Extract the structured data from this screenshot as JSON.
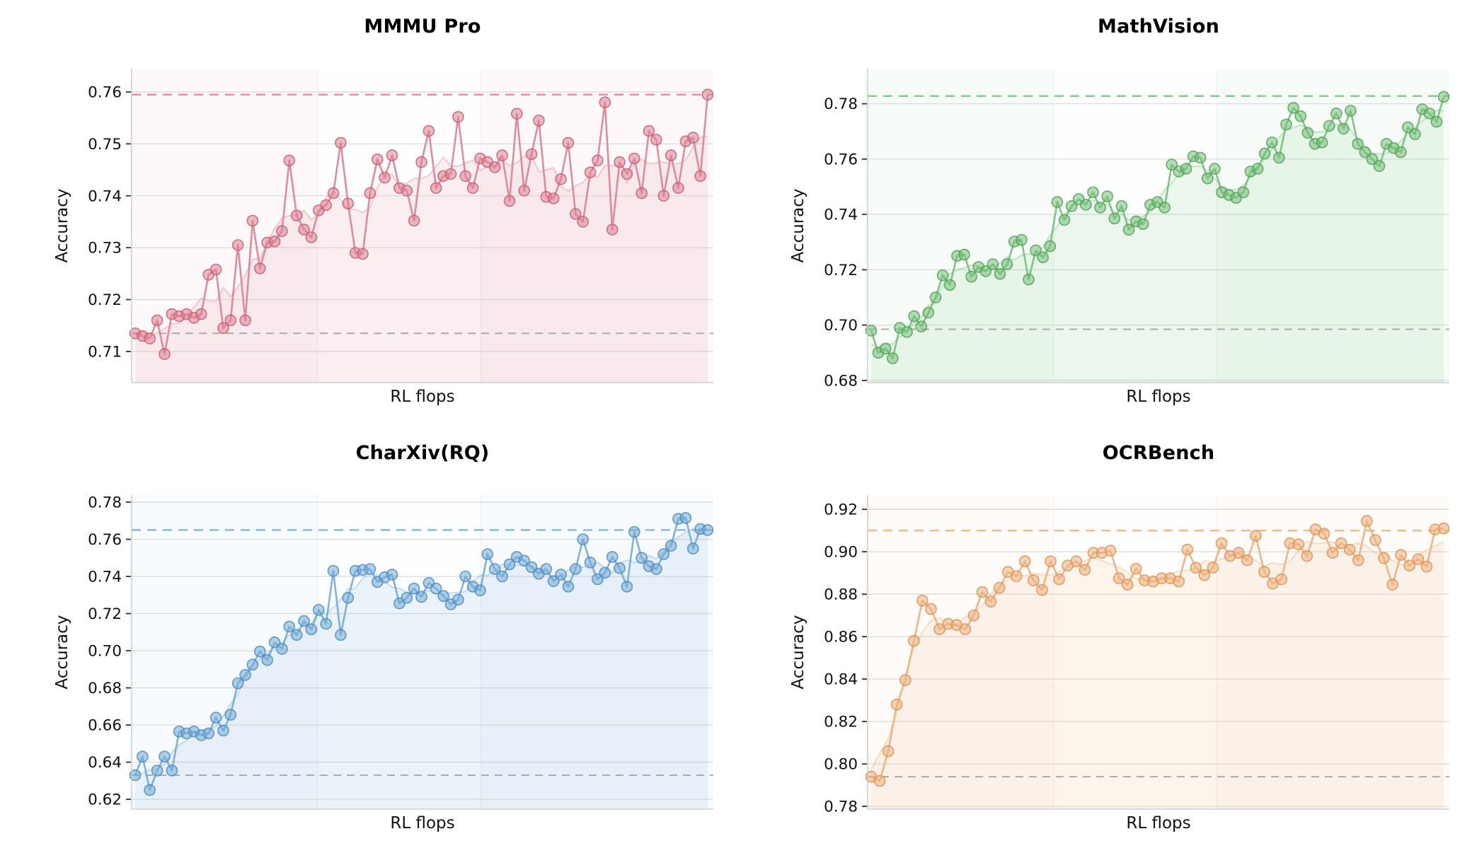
{
  "figure": {
    "background": "#ffffff",
    "grid_color": "#d9d9d9",
    "spine_color": "#c6c6c6",
    "text_color": "#111111"
  },
  "chart_data": [
    {
      "type": "line",
      "title": "MMMU Pro",
      "xlabel": "RL flops",
      "ylabel": "Accuracy",
      "color": "#dc8294",
      "marker_edge_color": "#c45e74",
      "final_reference_line": {
        "value": 0.7595,
        "style": "dashed",
        "color": "#e8909f"
      },
      "baseline_reference_line": {
        "value": 0.7135,
        "style": "dashed",
        "color": "#9e9e9e"
      },
      "ylim": [
        0.704,
        0.7645
      ],
      "yticks": [
        0.71,
        0.72,
        0.73,
        0.74,
        0.75,
        0.76
      ],
      "grid": true,
      "legend": "none",
      "x_axis_ticks": "unlabeled (RL flops)",
      "values": [
        0.7135,
        0.713,
        0.7125,
        0.716,
        0.7095,
        0.7172,
        0.7168,
        0.7172,
        0.7165,
        0.7172,
        0.7248,
        0.7258,
        0.7145,
        0.716,
        0.7305,
        0.716,
        0.7352,
        0.726,
        0.731,
        0.7312,
        0.7332,
        0.7468,
        0.7362,
        0.7335,
        0.732,
        0.7372,
        0.7382,
        0.7405,
        0.7502,
        0.7385,
        0.729,
        0.7288,
        0.7405,
        0.747,
        0.7435,
        0.7478,
        0.7415,
        0.741,
        0.7352,
        0.7465,
        0.7525,
        0.7415,
        0.7438,
        0.7442,
        0.7552,
        0.7438,
        0.7415,
        0.7472,
        0.7465,
        0.7455,
        0.7478,
        0.739,
        0.7558,
        0.741,
        0.748,
        0.7545,
        0.7398,
        0.7395,
        0.7432,
        0.7502,
        0.7365,
        0.735,
        0.7445,
        0.7468,
        0.758,
        0.7335,
        0.7465,
        0.7442,
        0.7472,
        0.7405,
        0.7525,
        0.7508,
        0.74,
        0.7478,
        0.7415,
        0.7505,
        0.7512,
        0.7438,
        0.7595
      ]
    },
    {
      "type": "line",
      "title": "MathVision",
      "xlabel": "RL flops",
      "ylabel": "Accuracy",
      "color": "#74c078",
      "marker_edge_color": "#519f58",
      "final_reference_line": {
        "value": 0.7828,
        "style": "dashed",
        "color": "#83cc8a"
      },
      "baseline_reference_line": {
        "value": 0.6985,
        "style": "dashed",
        "color": "#9e9e9e"
      },
      "ylim": [
        0.6792,
        0.7927
      ],
      "yticks": [
        0.68,
        0.7,
        0.72,
        0.74,
        0.76,
        0.78
      ],
      "grid": true,
      "legend": "none",
      "x_axis_ticks": "unlabeled (RL flops)",
      "values": [
        0.698,
        0.69,
        0.6915,
        0.688,
        0.699,
        0.6975,
        0.7032,
        0.6995,
        0.7045,
        0.71,
        0.718,
        0.7145,
        0.725,
        0.7255,
        0.7175,
        0.721,
        0.7195,
        0.722,
        0.7185,
        0.722,
        0.7302,
        0.7308,
        0.7165,
        0.727,
        0.7245,
        0.7285,
        0.7445,
        0.738,
        0.743,
        0.7455,
        0.7435,
        0.748,
        0.7425,
        0.7465,
        0.7385,
        0.743,
        0.7345,
        0.7375,
        0.7365,
        0.7435,
        0.7445,
        0.7425,
        0.758,
        0.7555,
        0.7565,
        0.761,
        0.7605,
        0.753,
        0.7565,
        0.748,
        0.747,
        0.746,
        0.748,
        0.7555,
        0.7565,
        0.762,
        0.766,
        0.7605,
        0.7725,
        0.7785,
        0.7755,
        0.7695,
        0.7655,
        0.766,
        0.772,
        0.7765,
        0.771,
        0.7775,
        0.7655,
        0.7625,
        0.76,
        0.7575,
        0.7655,
        0.764,
        0.7625,
        0.7715,
        0.769,
        0.778,
        0.7765,
        0.7735,
        0.7825
      ]
    },
    {
      "type": "line",
      "title": "CharXiv(RQ)",
      "xlabel": "RL flops",
      "ylabel": "Accuracy",
      "color": "#73abd6",
      "marker_edge_color": "#4e88bd",
      "final_reference_line": {
        "value": 0.765,
        "style": "dashed",
        "color": "#86badf"
      },
      "baseline_reference_line": {
        "value": 0.633,
        "style": "dashed",
        "color": "#9e9e9e"
      },
      "ylim": [
        0.6147,
        0.7838
      ],
      "yticks": [
        0.62,
        0.64,
        0.66,
        0.68,
        0.7,
        0.72,
        0.74,
        0.76,
        0.78
      ],
      "grid": true,
      "legend": "none",
      "x_axis_ticks": "unlabeled (RL flops)",
      "values": [
        0.633,
        0.643,
        0.625,
        0.6355,
        0.643,
        0.6355,
        0.6565,
        0.6555,
        0.6565,
        0.6545,
        0.6555,
        0.664,
        0.657,
        0.6655,
        0.6825,
        0.687,
        0.6925,
        0.6996,
        0.695,
        0.7045,
        0.701,
        0.713,
        0.7085,
        0.716,
        0.7115,
        0.722,
        0.7145,
        0.743,
        0.7085,
        0.7285,
        0.743,
        0.7435,
        0.744,
        0.737,
        0.7395,
        0.741,
        0.7255,
        0.7285,
        0.7335,
        0.729,
        0.7365,
        0.7335,
        0.7295,
        0.725,
        0.7275,
        0.74,
        0.7345,
        0.7325,
        0.752,
        0.744,
        0.74,
        0.7465,
        0.7505,
        0.7485,
        0.745,
        0.7415,
        0.744,
        0.7375,
        0.741,
        0.7345,
        0.744,
        0.76,
        0.7475,
        0.7385,
        0.742,
        0.7505,
        0.7445,
        0.7345,
        0.764,
        0.75,
        0.7455,
        0.744,
        0.752,
        0.7565,
        0.771,
        0.7715,
        0.755,
        0.7655,
        0.765
      ]
    },
    {
      "type": "line",
      "title": "OCRBench",
      "xlabel": "RL flops",
      "ylabel": "Accuracy",
      "color": "#edb07c",
      "marker_edge_color": "#d89254",
      "final_reference_line": {
        "value": 0.91,
        "style": "dashed",
        "color": "#f1ba89"
      },
      "baseline_reference_line": {
        "value": 0.794,
        "style": "dashed",
        "color": "#9e9e9e"
      },
      "ylim": [
        0.7787,
        0.9267
      ],
      "yticks": [
        0.78,
        0.8,
        0.82,
        0.84,
        0.86,
        0.88,
        0.9,
        0.92
      ],
      "grid": true,
      "legend": "none",
      "x_axis_ticks": "unlabeled (RL flops)",
      "values": [
        0.794,
        0.792,
        0.806,
        0.828,
        0.8395,
        0.858,
        0.877,
        0.873,
        0.8635,
        0.866,
        0.8655,
        0.8635,
        0.87,
        0.881,
        0.8765,
        0.883,
        0.8905,
        0.8885,
        0.8955,
        0.8865,
        0.882,
        0.8955,
        0.887,
        0.8935,
        0.8955,
        0.8915,
        0.8995,
        0.8995,
        0.9005,
        0.8875,
        0.8845,
        0.892,
        0.8865,
        0.886,
        0.8875,
        0.8875,
        0.886,
        0.901,
        0.8925,
        0.889,
        0.8925,
        0.904,
        0.898,
        0.8995,
        0.896,
        0.9075,
        0.8905,
        0.885,
        0.887,
        0.904,
        0.9035,
        0.898,
        0.9105,
        0.9085,
        0.8995,
        0.904,
        0.901,
        0.896,
        0.9145,
        0.9055,
        0.897,
        0.8845,
        0.8985,
        0.8935,
        0.8965,
        0.893,
        0.9105,
        0.911
      ]
    }
  ]
}
